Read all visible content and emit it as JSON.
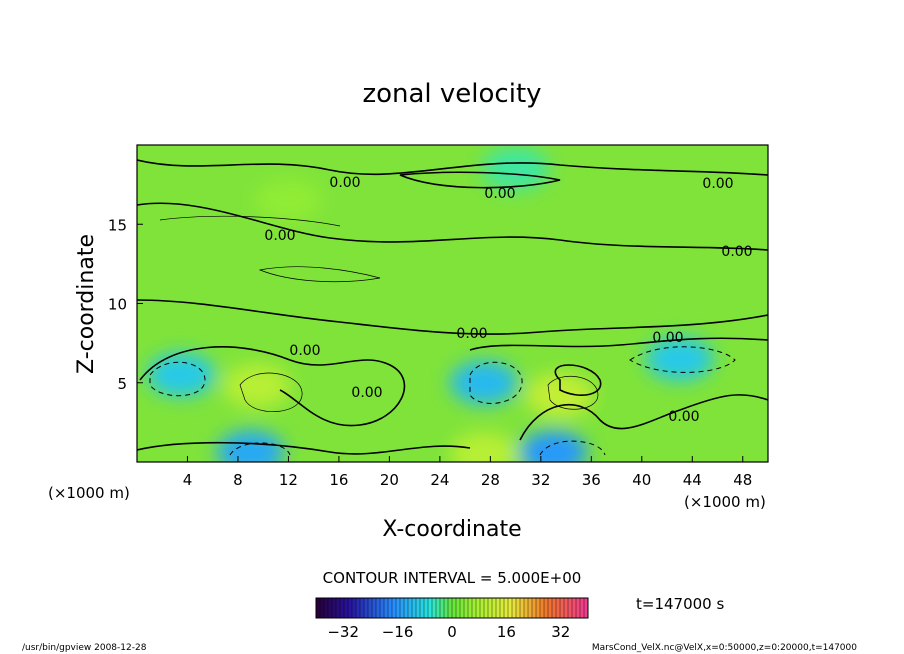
{
  "chart_data": {
    "type": "heatmap",
    "title": "zonal velocity",
    "xlabel": "X-coordinate",
    "ylabel": "Z-coordinate",
    "x_unit": "(×1000 m)",
    "xlim": [
      0,
      50
    ],
    "ylim": [
      0,
      20
    ],
    "x_ticks": [
      4,
      8,
      12,
      16,
      20,
      24,
      28,
      32,
      36,
      40,
      44,
      48
    ],
    "y_ticks": [
      5,
      10,
      15
    ],
    "contour_interval_text": "CONTOUR INTERVAL = 5.000E+00",
    "contour_labels": [
      "0.00",
      "0.00",
      "0.00",
      "0.00",
      "0.00",
      "0.00",
      "0.00",
      "0.00",
      "0.00",
      "0.00"
    ],
    "colorbar": {
      "ticks": [
        -32,
        -16,
        0,
        16,
        32
      ],
      "range": [
        -40,
        40
      ]
    },
    "time_label": "t=147000 s",
    "features": [
      {
        "x": 9.5,
        "z": 4.8,
        "value": 10
      },
      {
        "x": 33.5,
        "z": 4.2,
        "value": 12
      },
      {
        "x": 27.5,
        "z": 5.0,
        "value": -12
      },
      {
        "x": 3.5,
        "z": 5.5,
        "value": -10
      },
      {
        "x": 9.0,
        "z": 0.6,
        "value": -14
      },
      {
        "x": 27.5,
        "z": 0.5,
        "value": 10
      },
      {
        "x": 33.0,
        "z": 0.6,
        "value": -16
      },
      {
        "x": 43.0,
        "z": 6.5,
        "value": -10
      },
      {
        "x": 30.0,
        "z": 18.5,
        "value": -4
      },
      {
        "x": 12.0,
        "z": 16.5,
        "value": 5
      }
    ]
  },
  "footer": {
    "program": "/usr/bin/gpview  2008-12-28",
    "source": "MarsCond_VelX.nc@VelX,x=0:50000,z=0:20000,t=147000"
  },
  "colors": {
    "background_field": "#7fe33a",
    "positive": "#c8f03a",
    "negative": "#30e8c8",
    "strong_negative": "#22e6e6",
    "contour": "#000000"
  }
}
